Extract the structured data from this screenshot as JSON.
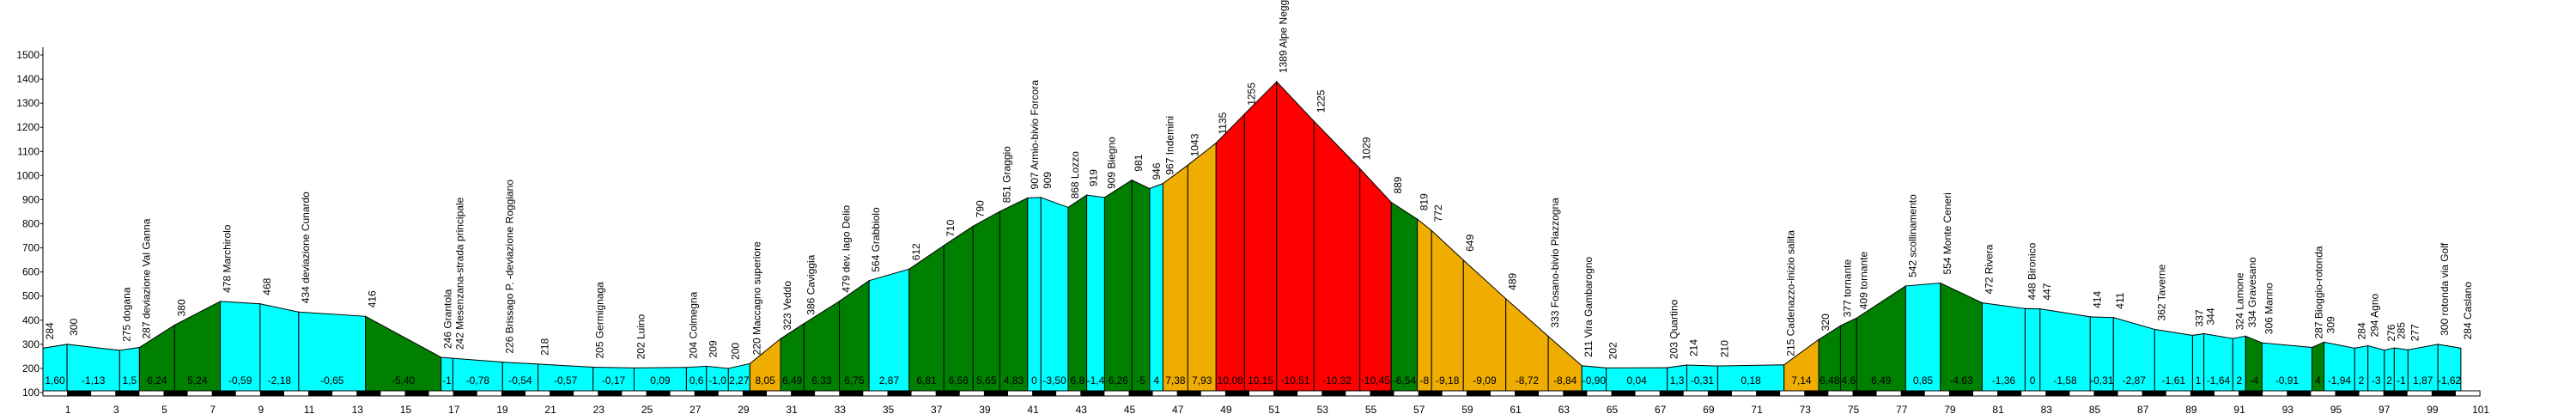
{
  "chart_data": {
    "type": "area",
    "title": "",
    "xlabel": "",
    "ylabel": "",
    "xlim": [
      0,
      101
    ],
    "ylim": [
      100,
      1500
    ],
    "y_ticks": [
      100,
      200,
      300,
      400,
      500,
      600,
      700,
      800,
      900,
      1000,
      1100,
      1200,
      1300,
      1400,
      1500
    ],
    "x_ticks": [
      1,
      3,
      5,
      7,
      9,
      11,
      13,
      15,
      17,
      19,
      21,
      23,
      25,
      27,
      29,
      31,
      33,
      35,
      37,
      39,
      41,
      43,
      45,
      47,
      49,
      51,
      53,
      55,
      57,
      59,
      61,
      63,
      65,
      67,
      69,
      71,
      73,
      75,
      77,
      79,
      81,
      83,
      85,
      87,
      89,
      91,
      93,
      95,
      97,
      99,
      101
    ],
    "colors": {
      "easy": "#00FFFF",
      "moderate": "#008000",
      "hard": "#EEAD00",
      "very_hard": "#FF0000"
    },
    "points": [
      {
        "km": 0,
        "elev": 284,
        "label": "284"
      },
      {
        "km": 1.0,
        "elev": 300,
        "label": "300"
      },
      {
        "km": 3.18,
        "elev": 275,
        "label": "275 dogana"
      },
      {
        "km": 4.0,
        "elev": 287,
        "label": "287 deviazione Val Ganna"
      },
      {
        "km": 5.46,
        "elev": 380,
        "label": "380"
      },
      {
        "km": 7.35,
        "elev": 478,
        "label": "478 Marchirolo"
      },
      {
        "km": 9.0,
        "elev": 468,
        "label": "468"
      },
      {
        "km": 10.6,
        "elev": 434,
        "label": "434 deviazione Cunardo"
      },
      {
        "km": 13.37,
        "elev": 416,
        "label": "416"
      },
      {
        "km": 16.5,
        "elev": 246,
        "label": "246 Grantola"
      },
      {
        "km": 16.99,
        "elev": 242,
        "label": "242 Mesenzana-strada principale"
      },
      {
        "km": 19.05,
        "elev": 226,
        "label": "226 Brissago P. -deviazione Roggiano"
      },
      {
        "km": 20.52,
        "elev": 218,
        "label": "218"
      },
      {
        "km": 22.8,
        "elev": 205,
        "label": "205 Germignaga"
      },
      {
        "km": 24.5,
        "elev": 202,
        "label": "202 Luino"
      },
      {
        "km": 26.67,
        "elev": 204,
        "label": "204 Colmegna"
      },
      {
        "km": 27.5,
        "elev": 209,
        "label": "209"
      },
      {
        "km": 28.41,
        "elev": 200,
        "label": "200"
      },
      {
        "km": 29.3,
        "elev": 220,
        "label": "220 Maccagno superiore"
      },
      {
        "km": 30.57,
        "elev": 323,
        "label": "323 Veddo"
      },
      {
        "km": 31.54,
        "elev": 386,
        "label": "386 Caviggia"
      },
      {
        "km": 33.01,
        "elev": 479,
        "label": "479 dev. lago Delio"
      },
      {
        "km": 34.24,
        "elev": 564,
        "label": "564 Grabbiolo"
      },
      {
        "km": 35.9,
        "elev": 612,
        "label": "612"
      },
      {
        "km": 37.34,
        "elev": 710,
        "label": "710"
      },
      {
        "km": 38.55,
        "elev": 790,
        "label": "790"
      },
      {
        "km": 39.66,
        "elev": 851,
        "label": "851 Graggio"
      },
      {
        "km": 40.81,
        "elev": 907,
        "label": "907 Armio-bivio Forcora"
      },
      {
        "km": 41.36,
        "elev": 909,
        "label": "909"
      },
      {
        "km": 42.49,
        "elev": 868,
        "label": "868 Lozzo"
      },
      {
        "km": 43.26,
        "elev": 919,
        "label": "919"
      },
      {
        "km": 44.0,
        "elev": 909,
        "label": "909 Biegno"
      },
      {
        "km": 45.13,
        "elev": 981,
        "label": "981"
      },
      {
        "km": 45.87,
        "elev": 946,
        "label": "946"
      },
      {
        "km": 46.42,
        "elev": 967,
        "label": "967 Indemini"
      },
      {
        "km": 47.45,
        "elev": 1043,
        "label": "1043"
      },
      {
        "km": 48.62,
        "elev": 1135,
        "label": "1135"
      },
      {
        "km": 49.8,
        "elev": 1255,
        "label": "1255"
      },
      {
        "km": 51.13,
        "elev": 1389,
        "label": "1389 Alpe Neggia"
      },
      {
        "km": 52.68,
        "elev": 1225,
        "label": "1225"
      },
      {
        "km": 54.58,
        "elev": 1029,
        "label": "1029"
      },
      {
        "km": 55.88,
        "elev": 889,
        "label": "889"
      },
      {
        "km": 56.96,
        "elev": 819,
        "label": "819"
      },
      {
        "km": 57.55,
        "elev": 772,
        "label": "772"
      },
      {
        "km": 58.87,
        "elev": 649,
        "label": "649"
      },
      {
        "km": 60.63,
        "elev": 489,
        "label": "489"
      },
      {
        "km": 62.39,
        "elev": 333,
        "label": "333 Fosano-bivio Piazzogna"
      },
      {
        "km": 63.78,
        "elev": 211,
        "label": "211 Vira Gambarogno"
      },
      {
        "km": 64.79,
        "elev": 202,
        "label": "202"
      },
      {
        "km": 67.32,
        "elev": 203,
        "label": "203 Quartino"
      },
      {
        "km": 68.13,
        "elev": 214,
        "label": "214"
      },
      {
        "km": 69.41,
        "elev": 210,
        "label": "210"
      },
      {
        "km": 72.16,
        "elev": 215,
        "label": "215 Cadenazzo-inizio salita"
      },
      {
        "km": 73.6,
        "elev": 320,
        "label": "320"
      },
      {
        "km": 74.5,
        "elev": 377,
        "label": "377 tornante"
      },
      {
        "km": 75.17,
        "elev": 409,
        "label": "409 tornante"
      },
      {
        "km": 77.2,
        "elev": 542,
        "label": "542 scollinamento"
      },
      {
        "km": 78.64,
        "elev": 554,
        "label": "554 Monte Ceneri"
      },
      {
        "km": 80.37,
        "elev": 472,
        "label": "472 Rivera"
      },
      {
        "km": 82.15,
        "elev": 448,
        "label": "448 Bironico"
      },
      {
        "km": 82.77,
        "elev": 447,
        "label": "447"
      },
      {
        "km": 84.85,
        "elev": 414,
        "label": "414"
      },
      {
        "km": 85.81,
        "elev": 411,
        "label": "411"
      },
      {
        "km": 87.52,
        "elev": 362,
        "label": "362 Taverne"
      },
      {
        "km": 89.09,
        "elev": 337,
        "label": "337"
      },
      {
        "km": 89.56,
        "elev": 344,
        "label": "344"
      },
      {
        "km": 90.76,
        "elev": 324,
        "label": "324 Lamone"
      },
      {
        "km": 91.29,
        "elev": 334,
        "label": "334 Gravesano"
      },
      {
        "km": 91.97,
        "elev": 306,
        "label": "306 Manno"
      },
      {
        "km": 94.04,
        "elev": 287,
        "label": "287 Bioggio-rotonda"
      },
      {
        "km": 94.54,
        "elev": 309,
        "label": "309"
      },
      {
        "km": 95.81,
        "elev": 284,
        "label": "284"
      },
      {
        "km": 96.36,
        "elev": 294,
        "label": "294 Agno"
      },
      {
        "km": 97.04,
        "elev": 276,
        "label": "276"
      },
      {
        "km": 97.45,
        "elev": 285,
        "label": "285"
      },
      {
        "km": 98.02,
        "elev": 277,
        "label": "277"
      },
      {
        "km": 99.26,
        "elev": 300,
        "label": "300 rotonda via Golf"
      },
      {
        "km": 100.21,
        "elev": 284,
        "label": "284 Caslano"
      }
    ],
    "segments": [
      {
        "slope": "1,60",
        "c": "easy"
      },
      {
        "slope": "-1,13",
        "c": "easy"
      },
      {
        "slope": "1,5",
        "c": "easy"
      },
      {
        "slope": "6,24",
        "c": "moderate"
      },
      {
        "slope": "5,24",
        "c": "moderate"
      },
      {
        "slope": "-0,59",
        "c": "easy"
      },
      {
        "slope": "-2,18",
        "c": "easy"
      },
      {
        "slope": "-0,65",
        "c": "easy"
      },
      {
        "slope": "-5,40",
        "c": "moderate"
      },
      {
        "slope": "-1",
        "c": "easy"
      },
      {
        "slope": "-0,78",
        "c": "easy"
      },
      {
        "slope": "-0,54",
        "c": "easy"
      },
      {
        "slope": "-0,57",
        "c": "easy"
      },
      {
        "slope": "-0,17",
        "c": "easy"
      },
      {
        "slope": "0,09",
        "c": "easy"
      },
      {
        "slope": "0,6",
        "c": "easy"
      },
      {
        "slope": "-1,0",
        "c": "easy"
      },
      {
        "slope": "2,27",
        "c": "easy"
      },
      {
        "slope": "8,05",
        "c": "hard"
      },
      {
        "slope": "6,49",
        "c": "moderate"
      },
      {
        "slope": "6,33",
        "c": "moderate"
      },
      {
        "slope": "6,75",
        "c": "moderate"
      },
      {
        "slope": "2,87",
        "c": "easy"
      },
      {
        "slope": "6,81",
        "c": "moderate"
      },
      {
        "slope": "6,56",
        "c": "moderate"
      },
      {
        "slope": "5,65",
        "c": "moderate"
      },
      {
        "slope": "4,83",
        "c": "moderate"
      },
      {
        "slope": "0",
        "c": "easy"
      },
      {
        "slope": "-3,50",
        "c": "easy"
      },
      {
        "slope": "6,8",
        "c": "moderate"
      },
      {
        "slope": "-1,4",
        "c": "easy"
      },
      {
        "slope": "6,26",
        "c": "moderate"
      },
      {
        "slope": "-5",
        "c": "moderate"
      },
      {
        "slope": "4",
        "c": "easy"
      },
      {
        "slope": "7,38",
        "c": "hard"
      },
      {
        "slope": "7,93",
        "c": "hard"
      },
      {
        "slope": "10,08",
        "c": "very_hard"
      },
      {
        "slope": "10,15",
        "c": "very_hard"
      },
      {
        "slope": "-10,51",
        "c": "very_hard"
      },
      {
        "slope": "-10,32",
        "c": "very_hard"
      },
      {
        "slope": "-10,45",
        "c": "very_hard"
      },
      {
        "slope": "-6,54",
        "c": "moderate"
      },
      {
        "slope": "-8",
        "c": "hard"
      },
      {
        "slope": "-9,18",
        "c": "hard"
      },
      {
        "slope": "-9,09",
        "c": "hard"
      },
      {
        "slope": "-8,72",
        "c": "hard"
      },
      {
        "slope": "-8,84",
        "c": "hard"
      },
      {
        "slope": "-0,90",
        "c": "easy"
      },
      {
        "slope": "0,04",
        "c": "easy"
      },
      {
        "slope": "1,3",
        "c": "easy"
      },
      {
        "slope": "-0,31",
        "c": "easy"
      },
      {
        "slope": "0,18",
        "c": "easy"
      },
      {
        "slope": "7,14",
        "c": "hard"
      },
      {
        "slope": "6,48",
        "c": "moderate"
      },
      {
        "slope": "4,6",
        "c": "moderate"
      },
      {
        "slope": "6,49",
        "c": "moderate"
      },
      {
        "slope": "0,85",
        "c": "easy"
      },
      {
        "slope": "-4,63",
        "c": "moderate"
      },
      {
        "slope": "-1,36",
        "c": "easy"
      },
      {
        "slope": "0",
        "c": "easy"
      },
      {
        "slope": "-1,58",
        "c": "easy"
      },
      {
        "slope": "-0,31",
        "c": "easy"
      },
      {
        "slope": "-2,87",
        "c": "easy"
      },
      {
        "slope": "-1,61",
        "c": "easy"
      },
      {
        "slope": "1",
        "c": "easy"
      },
      {
        "slope": "-1,64",
        "c": "easy"
      },
      {
        "slope": "2",
        "c": "easy"
      },
      {
        "slope": "-4",
        "c": "moderate"
      },
      {
        "slope": "-0,91",
        "c": "easy"
      },
      {
        "slope": "4",
        "c": "moderate"
      },
      {
        "slope": "-1,94",
        "c": "easy"
      },
      {
        "slope": "2",
        "c": "easy"
      },
      {
        "slope": "-3",
        "c": "easy"
      },
      {
        "slope": "2",
        "c": "easy"
      },
      {
        "slope": "-1",
        "c": "easy"
      },
      {
        "slope": "1,87",
        "c": "easy"
      },
      {
        "slope": "-1,62",
        "c": "easy"
      }
    ]
  }
}
